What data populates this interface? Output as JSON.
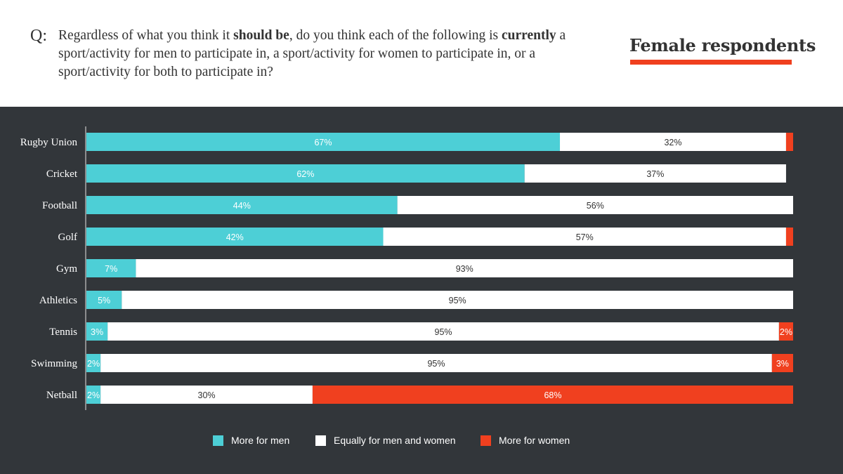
{
  "header": {
    "q_label": "Q:",
    "question_parts": [
      {
        "text": "Regardless of what you think it ",
        "bold": false
      },
      {
        "text": "should be",
        "bold": true
      },
      {
        "text": ", do you think each of the following is ",
        "bold": false
      },
      {
        "text": "currently",
        "bold": true
      },
      {
        "text": " a sport/activity for men to participate in, a sport/activity for women to participate in, or a sport/activity for both to participate in?",
        "bold": false
      }
    ],
    "badge": "Female respondents"
  },
  "colors": {
    "men": "#4dcfd6",
    "equal": "#ffffff",
    "women": "#f0401f",
    "background": "#32363a",
    "accent": "#f0401f"
  },
  "chart_data": {
    "type": "bar",
    "orientation": "horizontal",
    "stacked": true,
    "title": "Female respondents",
    "xlabel": "",
    "ylabel": "",
    "xlim": [
      0,
      100
    ],
    "grid": false,
    "legend_position": "bottom",
    "categories": [
      "Rugby Union",
      "Cricket",
      "Football",
      "Golf",
      "Gym",
      "Athletics",
      "Tennis",
      "Swimming",
      "Netball"
    ],
    "series": [
      {
        "name": "More for men",
        "key": "men",
        "values": [
          67,
          62,
          44,
          42,
          7,
          5,
          3,
          2,
          2
        ],
        "labels": [
          "67%",
          "62%",
          "44%",
          "42%",
          "7%",
          "5%",
          "3%",
          "2%",
          "2%"
        ]
      },
      {
        "name": "Equally for men and women",
        "key": "equal",
        "values": [
          32,
          37,
          56,
          57,
          93,
          95,
          95,
          95,
          30
        ],
        "labels": [
          "32%",
          "37%",
          "56%",
          "57%",
          "93%",
          "95%",
          "95%",
          "95%",
          "30%"
        ]
      },
      {
        "name": "More for women",
        "key": "women",
        "values": [
          1,
          0,
          0,
          1,
          0,
          0,
          2,
          3,
          68
        ],
        "labels": [
          "",
          "",
          "",
          "",
          "",
          "",
          "2%",
          "3%",
          "68%"
        ]
      }
    ]
  },
  "legend": [
    {
      "label": "More for men",
      "key": "men"
    },
    {
      "label": "Equally for men and women",
      "key": "equal"
    },
    {
      "label": "More for women",
      "key": "women"
    }
  ]
}
